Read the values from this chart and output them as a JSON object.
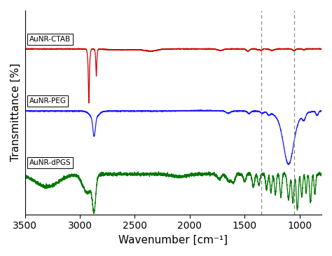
{
  "title": "",
  "xlabel": "Wavenumber [cm⁻¹]",
  "ylabel": "Transmittance [%]",
  "xlim": [
    3500,
    800
  ],
  "ylim": [
    -1.0,
    1.0
  ],
  "dotted_lines": [
    1350,
    1050
  ],
  "labels": [
    "AuNR-CTAB",
    "AuNR-PEG",
    "AuNR-dPGS"
  ],
  "colors": [
    "#cc0000",
    "#1a1aff",
    "#007700"
  ],
  "offsets": [
    0.62,
    0.0,
    -0.62
  ],
  "background_color": "#ffffff",
  "tick_label_size": 10,
  "axis_label_size": 11
}
